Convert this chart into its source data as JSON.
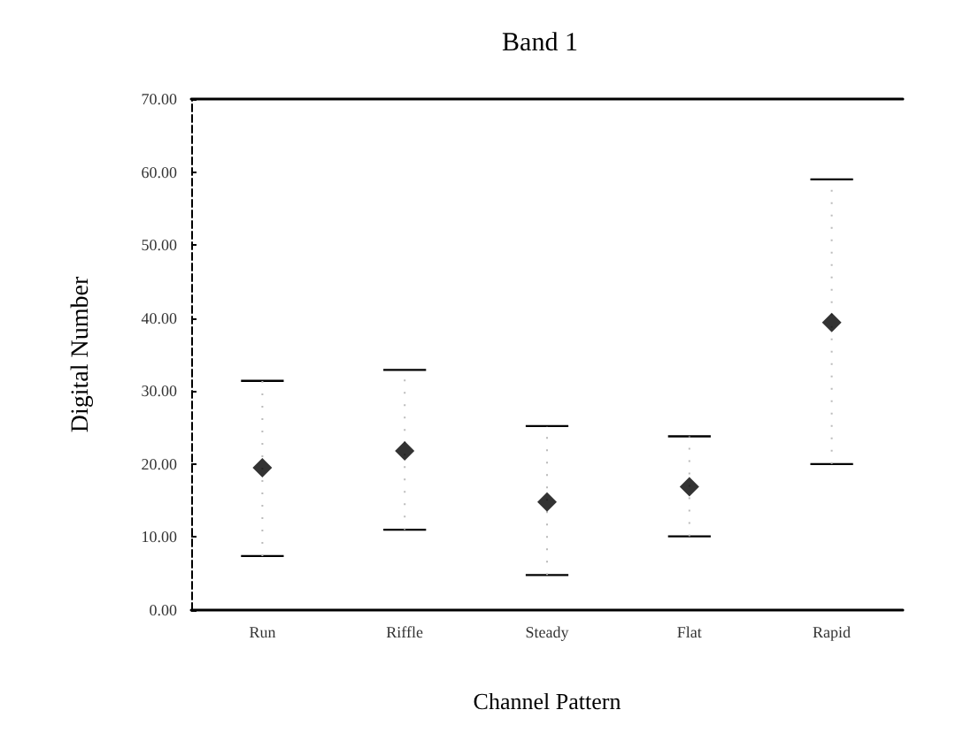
{
  "chart_data": {
    "type": "scatter",
    "title": "Band 1",
    "xlabel": "Channel Pattern",
    "ylabel": "Digital Number",
    "categories": [
      "Run",
      "Riffle",
      "Steady",
      "Flat",
      "Rapid"
    ],
    "values": [
      19.5,
      21.8,
      14.8,
      16.9,
      39.4
    ],
    "errors": [
      [
        7.4,
        31.4
      ],
      [
        11.0,
        32.9
      ],
      [
        4.8,
        25.2
      ],
      [
        10.1,
        23.8
      ],
      [
        20.0,
        59.0
      ]
    ],
    "color": "#000000",
    "marker": "diamond",
    "grid": false,
    "ylim": [
      0,
      70
    ],
    "yticks": [
      {
        "value": 0,
        "label": "0.00"
      },
      {
        "value": 10,
        "label": "10.00"
      },
      {
        "value": 20,
        "label": "20.00"
      },
      {
        "value": 30,
        "label": "30.00"
      },
      {
        "value": 40,
        "label": "40.00"
      },
      {
        "value": 50,
        "label": "50.00"
      },
      {
        "value": 60,
        "label": "60.00"
      },
      {
        "value": 70,
        "label": "70.00"
      }
    ]
  }
}
